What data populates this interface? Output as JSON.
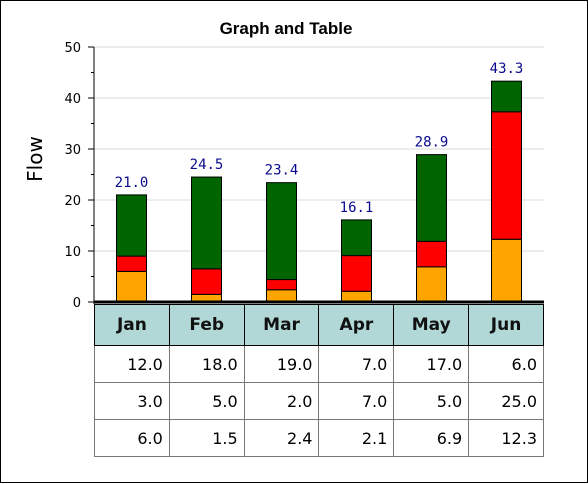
{
  "chart_data": {
    "type": "bar",
    "stacked": true,
    "title": "Graph and Table",
    "xlabel": "",
    "ylabel": "Flow",
    "ylim": [
      0,
      50
    ],
    "yticks": [
      "0",
      "10",
      "20",
      "30",
      "40",
      "50"
    ],
    "grid": true,
    "categories": [
      "Jan",
      "Feb",
      "Mar",
      "Apr",
      "May",
      "Jun"
    ],
    "series": [
      {
        "color": "#ffa500",
        "values": [
          6.0,
          1.5,
          2.4,
          2.1,
          6.9,
          12.3
        ]
      },
      {
        "color": "#ff0000",
        "values": [
          3.0,
          5.0,
          2.0,
          7.0,
          5.0,
          25.0
        ]
      },
      {
        "color": "#006400",
        "values": [
          12.0,
          18.0,
          19.0,
          7.0,
          17.0,
          6.0
        ]
      }
    ],
    "totals": [
      "21.0",
      "24.5",
      "23.4",
      "16.1",
      "28.9",
      "43.3"
    ],
    "table": {
      "columns": [
        "Jan",
        "Feb",
        "Mar",
        "Apr",
        "May",
        "Jun"
      ],
      "rows": [
        [
          "12.0",
          "18.0",
          "19.0",
          "7.0",
          "17.0",
          "6.0"
        ],
        [
          "3.0",
          "5.0",
          "2.0",
          "7.0",
          "5.0",
          "25.0"
        ],
        [
          "6.0",
          "1.5",
          "2.4",
          "2.1",
          "6.9",
          "12.3"
        ]
      ]
    }
  }
}
